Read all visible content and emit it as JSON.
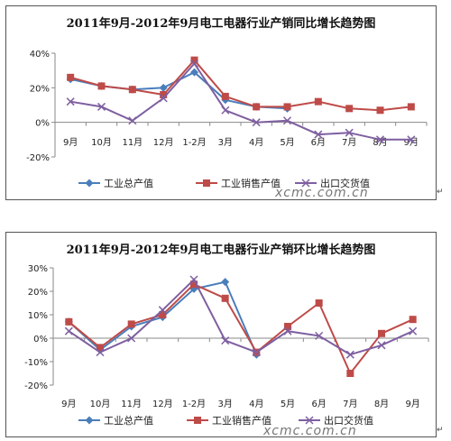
{
  "chart_data": [
    {
      "type": "line",
      "title": "2011年9月-2012年9月电工电器行业产销同比增长趋势图",
      "categories": [
        "9月",
        "10月",
        "11月",
        "12月",
        "1-2月",
        "3月",
        "4月",
        "5月",
        "6月",
        "7月",
        "8月",
        "9月"
      ],
      "yticks": [
        "40%",
        "20%",
        "0%",
        "-20%"
      ],
      "ylim": [
        -20,
        40
      ],
      "series": [
        {
          "name": "工业总产值",
          "color": "#4a7ebb",
          "marker": "diamond",
          "values": [
            25,
            21,
            19,
            20,
            29,
            13,
            9,
            8,
            null,
            null,
            null,
            null
          ]
        },
        {
          "name": "工业销售产值",
          "color": "#be4b48",
          "marker": "square",
          "values": [
            26,
            21,
            19,
            16,
            36,
            15,
            9,
            9,
            12,
            8,
            7,
            9
          ]
        },
        {
          "name": "出口交货值",
          "color": "#7e5fa0",
          "marker": "x",
          "values": [
            12,
            9,
            1,
            14,
            34,
            7,
            0,
            1,
            -7,
            -6,
            -10,
            -10
          ]
        }
      ],
      "legend_position": "bottom"
    },
    {
      "type": "line",
      "title": "2011年9月-2012年9月电工电器行业产销环比增长趋势图",
      "categories": [
        "9月",
        "10月",
        "11月",
        "12月",
        "1-2月",
        "3月",
        "4月",
        "5月",
        "6月",
        "7月",
        "8月",
        "9月"
      ],
      "yticks": [
        "30%",
        "20%",
        "10%",
        "0%",
        "-10%",
        "-20%"
      ],
      "ylim": [
        -20,
        30
      ],
      "series": [
        {
          "name": "工业总产值",
          "color": "#4a7ebb",
          "marker": "diamond",
          "values": [
            7,
            -5,
            5,
            9,
            21,
            24,
            -7,
            null,
            null,
            null,
            null,
            null
          ]
        },
        {
          "name": "工业销售产值",
          "color": "#be4b48",
          "marker": "square",
          "values": [
            7,
            -4,
            6,
            10,
            23,
            17,
            -6,
            5,
            15,
            -15,
            2,
            8
          ]
        },
        {
          "name": "出口交货值",
          "color": "#7e5fa0",
          "marker": "x",
          "values": [
            3,
            -6,
            0,
            12,
            25,
            -1,
            -6,
            3,
            1,
            -7,
            -3,
            3
          ]
        }
      ],
      "legend_position": "bottom"
    }
  ],
  "watermarks": [
    "xcmc.com.cn",
    "xcmc.com.cn"
  ],
  "corner_marks": [
    "↵",
    "↵"
  ]
}
